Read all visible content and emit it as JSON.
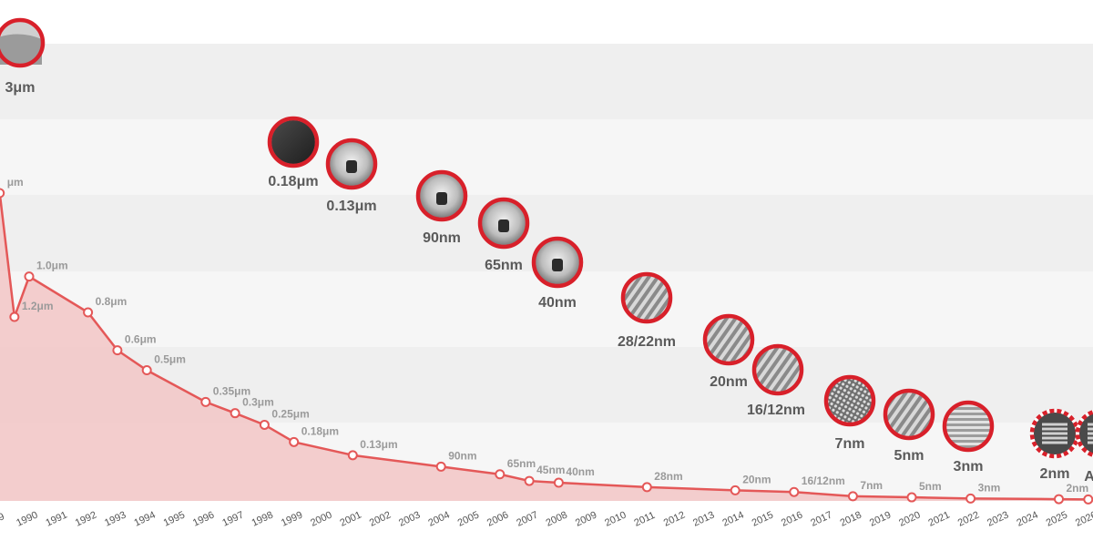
{
  "chart_data": {
    "type": "area",
    "title": "",
    "xlabel": "",
    "ylabel": "",
    "x_tick_labels": [
      "1990",
      "1991",
      "1992",
      "1993",
      "1994",
      "1995",
      "1996",
      "1997",
      "1998",
      "1999",
      "2000",
      "2001",
      "2002",
      "2003",
      "2004",
      "2005",
      "2006",
      "2007",
      "2008",
      "2009",
      "2010",
      "2011",
      "2012",
      "2013",
      "2014",
      "2015",
      "2016",
      "2017",
      "2018",
      "2019",
      "2020",
      "2021",
      "2022",
      "2023",
      "2024",
      "2025",
      "2026"
    ],
    "x_tick_partial_first": "9",
    "grid": true,
    "series": [
      {
        "points": [
          {
            "year": 1989,
            "value_um": 1.5,
            "label": "μm"
          },
          {
            "year": 1990,
            "value_um": 1.0,
            "label": "1.0μm"
          },
          {
            "year": 1992,
            "value_um": 0.8,
            "label": "0.8μm"
          },
          {
            "year": 1993,
            "value_um": 0.6,
            "label": "0.6μm"
          },
          {
            "year": 1994,
            "value_um": 0.5,
            "label": "0.5μm"
          },
          {
            "year": 1996,
            "value_um": 0.35,
            "label": "0.35μm"
          },
          {
            "year": 1997,
            "value_um": 0.3,
            "label": "0.3μm"
          },
          {
            "year": 1998,
            "value_um": 0.25,
            "label": "0.25μm"
          },
          {
            "year": 1999,
            "value_um": 0.18,
            "label": "0.18μm"
          },
          {
            "year": 2001,
            "value_um": 0.13,
            "label": "0.13μm"
          },
          {
            "year": 2004,
            "value_um": 0.09,
            "label": "90nm"
          },
          {
            "year": 2006,
            "value_um": 0.065,
            "label": "65nm"
          },
          {
            "year": 2007,
            "value_um": 0.045,
            "label": "45nm"
          },
          {
            "year": 2008,
            "value_um": 0.04,
            "label": "40nm"
          },
          {
            "year": 2011,
            "value_um": 0.028,
            "label": "28nm"
          },
          {
            "year": 2014,
            "value_um": 0.02,
            "label": "20nm"
          },
          {
            "year": 2016,
            "value_um": 0.016,
            "label": "16/12nm"
          },
          {
            "year": 2018,
            "value_um": 0.007,
            "label": "7nm"
          },
          {
            "year": 2020,
            "value_um": 0.005,
            "label": "5nm"
          },
          {
            "year": 2022,
            "value_um": 0.003,
            "label": "3nm"
          },
          {
            "year": 2025,
            "value_um": 0.002,
            "label": "2nm"
          },
          {
            "year": 2026,
            "value_um": 0.0016,
            "label": "A"
          }
        ]
      }
    ],
    "extra_point": {
      "year": 1989.5,
      "label": "1.2μm"
    },
    "node_images": [
      {
        "label": "3μm",
        "dashed": false,
        "style": "die"
      },
      {
        "label": "0.18μm",
        "dashed": false,
        "style": "dark"
      },
      {
        "label": "0.13μm",
        "dashed": false,
        "style": "cell"
      },
      {
        "label": "90nm",
        "dashed": false,
        "style": "cell"
      },
      {
        "label": "65nm",
        "dashed": false,
        "style": "cell"
      },
      {
        "label": "40nm",
        "dashed": false,
        "style": "cell"
      },
      {
        "label": "28/22nm",
        "dashed": false,
        "style": "fins"
      },
      {
        "label": "20nm",
        "dashed": false,
        "style": "fins"
      },
      {
        "label": "16/12nm",
        "dashed": false,
        "style": "fins"
      },
      {
        "label": "7nm",
        "dashed": false,
        "style": "mesh"
      },
      {
        "label": "5nm",
        "dashed": false,
        "style": "fins"
      },
      {
        "label": "3nm",
        "dashed": false,
        "style": "stripes"
      },
      {
        "label": "2nm",
        "dashed": true,
        "style": "gaa"
      },
      {
        "label": "A",
        "dashed": true,
        "style": "gaa"
      }
    ],
    "colors": {
      "line": "#e45858",
      "fill": "#f2c5c5",
      "band_dark": "#efefef",
      "band_light": "#f6f6f6",
      "ring": "#d8202a",
      "label_dark": "#5a5a5a",
      "label_light": "#9a9a9a"
    }
  }
}
